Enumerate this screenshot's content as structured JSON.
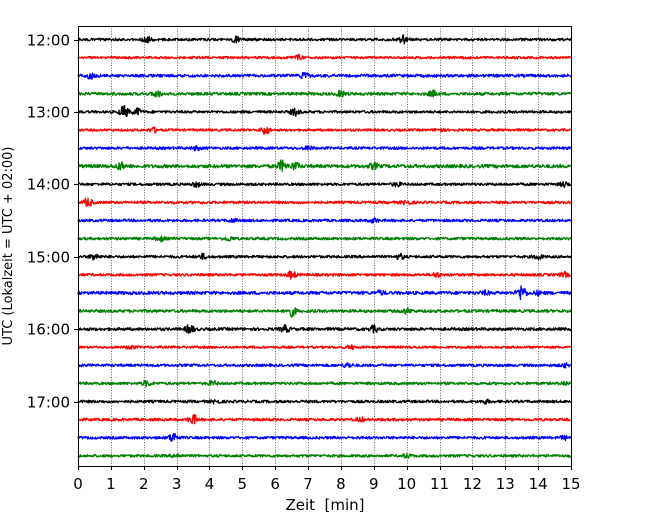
{
  "chart_data": {
    "type": "line",
    "title": "",
    "xlabel": "Zeit  [min]",
    "ylabel": "UTC (Lokalzeit = UTC + 02:00)",
    "xlim": [
      0,
      15
    ],
    "x_ticks": [
      0,
      1,
      2,
      3,
      4,
      5,
      6,
      7,
      8,
      9,
      10,
      11,
      12,
      13,
      14,
      15
    ],
    "x_tick_labels": [
      "0",
      "1",
      "2",
      "3",
      "4",
      "5",
      "6",
      "7",
      "8",
      "9",
      "10",
      "11",
      "12",
      "13",
      "14",
      "15"
    ],
    "y_axis_inverted": true,
    "y_ticks": [
      "12:00",
      "13:00",
      "14:00",
      "15:00",
      "16:00",
      "17:00"
    ],
    "grid": "vertical dotted lines at each minute",
    "color_cycle": [
      "#000000",
      "#ff0000",
      "#0000ff",
      "#008000"
    ],
    "traces": [
      {
        "start": "12:00",
        "color": "#000000",
        "amplitude": 1.0,
        "events": [
          [
            2.1,
            2.6
          ],
          [
            4.8,
            2.4
          ],
          [
            9.9,
            3.2
          ]
        ]
      },
      {
        "start": "12:15",
        "color": "#ff0000",
        "amplitude": 0.9,
        "events": [
          [
            6.7,
            2.3
          ]
        ]
      },
      {
        "start": "12:30",
        "color": "#0000ff",
        "amplitude": 1.1,
        "events": [
          [
            0.4,
            2.8
          ],
          [
            6.9,
            2.6
          ]
        ]
      },
      {
        "start": "12:45",
        "color": "#008000",
        "amplitude": 1.1,
        "events": [
          [
            2.4,
            2.8
          ],
          [
            8.0,
            2.6
          ],
          [
            10.8,
            2.6
          ]
        ]
      },
      {
        "start": "13:00",
        "color": "#000000",
        "amplitude": 1.0,
        "events": [
          [
            1.4,
            4.5
          ],
          [
            1.8,
            3.0
          ],
          [
            6.6,
            3.0
          ]
        ]
      },
      {
        "start": "13:15",
        "color": "#ff0000",
        "amplitude": 0.9,
        "events": [
          [
            2.3,
            2.4
          ],
          [
            5.7,
            3.5
          ],
          [
            11.0,
            2.0
          ]
        ]
      },
      {
        "start": "13:30",
        "color": "#0000ff",
        "amplitude": 1.0,
        "events": [
          [
            3.6,
            2.0
          ],
          [
            7.0,
            2.0
          ]
        ]
      },
      {
        "start": "13:45",
        "color": "#008000",
        "amplitude": 1.3,
        "events": [
          [
            1.3,
            3.0
          ],
          [
            6.2,
            4.0
          ],
          [
            6.6,
            3.0
          ],
          [
            9.0,
            2.5
          ]
        ]
      },
      {
        "start": "14:00",
        "color": "#000000",
        "amplitude": 1.0,
        "events": [
          [
            3.6,
            2.3
          ],
          [
            9.7,
            2.2
          ],
          [
            14.8,
            2.5
          ]
        ]
      },
      {
        "start": "14:15",
        "color": "#ff0000",
        "amplitude": 1.0,
        "events": [
          [
            0.3,
            3.5
          ],
          [
            10.0,
            2.2
          ]
        ]
      },
      {
        "start": "14:30",
        "color": "#0000ff",
        "amplitude": 1.0,
        "events": [
          [
            4.7,
            2.0
          ],
          [
            9.0,
            2.2
          ]
        ]
      },
      {
        "start": "14:45",
        "color": "#008000",
        "amplitude": 1.0,
        "events": [
          [
            2.5,
            2.5
          ],
          [
            4.6,
            2.2
          ]
        ]
      },
      {
        "start": "15:00",
        "color": "#000000",
        "amplitude": 1.0,
        "events": [
          [
            0.5,
            3.0
          ],
          [
            3.8,
            2.4
          ],
          [
            9.8,
            2.5
          ],
          [
            14.0,
            2.4
          ]
        ]
      },
      {
        "start": "15:15",
        "color": "#ff0000",
        "amplitude": 1.0,
        "events": [
          [
            6.5,
            3.2
          ],
          [
            10.9,
            2.4
          ],
          [
            14.8,
            2.2
          ]
        ]
      },
      {
        "start": "15:30",
        "color": "#0000ff",
        "amplitude": 1.2,
        "events": [
          [
            9.2,
            2.0
          ],
          [
            12.4,
            2.0
          ],
          [
            13.5,
            5.5
          ],
          [
            14.0,
            2.0
          ]
        ]
      },
      {
        "start": "15:45",
        "color": "#008000",
        "amplitude": 1.1,
        "events": [
          [
            6.5,
            4.0
          ],
          [
            10.0,
            2.5
          ]
        ]
      },
      {
        "start": "16:00",
        "color": "#000000",
        "amplitude": 1.1,
        "events": [
          [
            3.4,
            3.5
          ],
          [
            6.3,
            3.0
          ],
          [
            9.0,
            2.8
          ]
        ]
      },
      {
        "start": "16:15",
        "color": "#ff0000",
        "amplitude": 0.9,
        "events": [
          [
            1.6,
            2.0
          ],
          [
            8.3,
            2.0
          ]
        ]
      },
      {
        "start": "16:30",
        "color": "#0000ff",
        "amplitude": 1.0,
        "events": [
          [
            8.2,
            2.3
          ],
          [
            14.8,
            2.0
          ]
        ]
      },
      {
        "start": "16:45",
        "color": "#008000",
        "amplitude": 1.0,
        "events": [
          [
            2.1,
            2.5
          ],
          [
            4.1,
            2.2
          ],
          [
            14.8,
            2.0
          ]
        ]
      },
      {
        "start": "17:00",
        "color": "#000000",
        "amplitude": 1.0,
        "events": [
          [
            4.2,
            2.0
          ],
          [
            12.4,
            2.0
          ]
        ]
      },
      {
        "start": "17:15",
        "color": "#ff0000",
        "amplitude": 1.0,
        "events": [
          [
            3.5,
            3.8
          ],
          [
            8.6,
            2.0
          ]
        ]
      },
      {
        "start": "17:30",
        "color": "#0000ff",
        "amplitude": 1.0,
        "events": [
          [
            2.9,
            3.8
          ],
          [
            14.8,
            2.0
          ]
        ]
      },
      {
        "start": "17:45",
        "color": "#008000",
        "amplitude": 1.0,
        "events": [
          [
            3.0,
            2.0
          ],
          [
            10.0,
            2.0
          ]
        ]
      }
    ]
  }
}
